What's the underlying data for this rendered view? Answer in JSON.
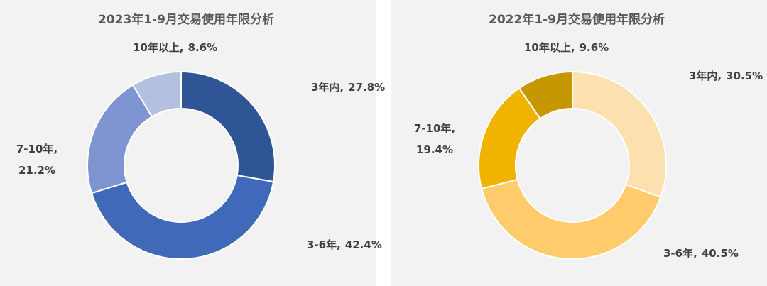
{
  "chart_data": [
    {
      "type": "donut",
      "title": "2023年1-9月交易使用年限分析",
      "categories": [
        "3年内,",
        "3-6年,",
        "7-10年,",
        "10年以上,"
      ],
      "values": [
        27.8,
        42.4,
        21.2,
        8.6
      ],
      "value_labels": [
        "27.8%",
        "42.4%",
        "21.2%",
        "8.6%"
      ],
      "colors": [
        "#2f5597",
        "#4169b9",
        "#7f95d2",
        "#b4c0e0"
      ]
    },
    {
      "type": "donut",
      "title": "2022年1-9月交易使用年限分析",
      "categories": [
        "3年内,",
        "3-6年,",
        "7-10年,",
        "10年以上,"
      ],
      "values": [
        30.5,
        40.5,
        19.4,
        9.6
      ],
      "value_labels": [
        "30.5%",
        "40.5%",
        "19.4%",
        "9.6%"
      ],
      "colors": [
        "#fde0b0",
        "#ffcb6b",
        "#efb300",
        "#c59700"
      ]
    }
  ]
}
